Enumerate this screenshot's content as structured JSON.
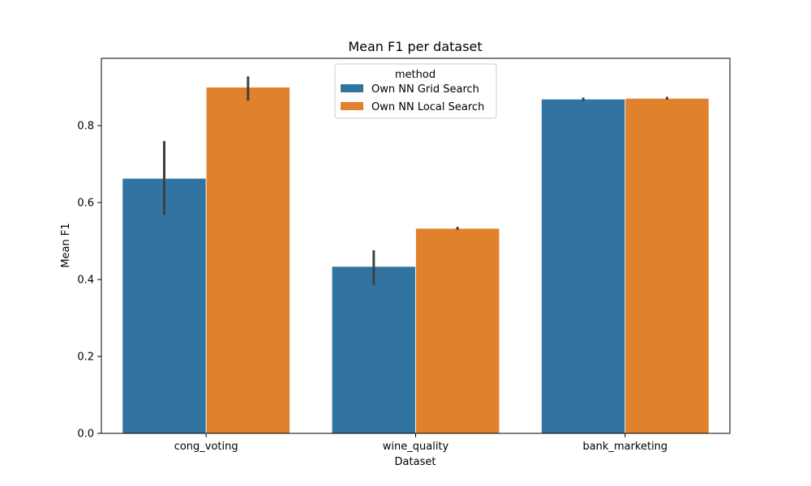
{
  "chart_data": {
    "type": "bar",
    "title": "Mean F1 per dataset",
    "xlabel": "Dataset",
    "ylabel": "Mean F1",
    "categories": [
      "cong_voting",
      "wine_quality",
      "bank_marketing"
    ],
    "ylim": [
      0,
      0.975
    ],
    "yticks": [
      0.0,
      0.2,
      0.4,
      0.6,
      0.8
    ],
    "ytick_labels": [
      "0.0",
      "0.2",
      "0.4",
      "0.6",
      "0.8"
    ],
    "legend": {
      "title": "method",
      "position": "top-center"
    },
    "grid": false,
    "series": [
      {
        "name": "Own NN Grid Search",
        "color": "#3274a1",
        "values": [
          0.663,
          0.434,
          0.869
        ],
        "error_low": [
          0.568,
          0.386,
          0.865
        ],
        "error_high": [
          0.76,
          0.476,
          0.873
        ]
      },
      {
        "name": "Own NN Local Search",
        "color": "#e1812c",
        "values": [
          0.9,
          0.533,
          0.871
        ],
        "error_low": [
          0.865,
          0.529,
          0.868
        ],
        "error_high": [
          0.928,
          0.537,
          0.875
        ]
      }
    ]
  }
}
